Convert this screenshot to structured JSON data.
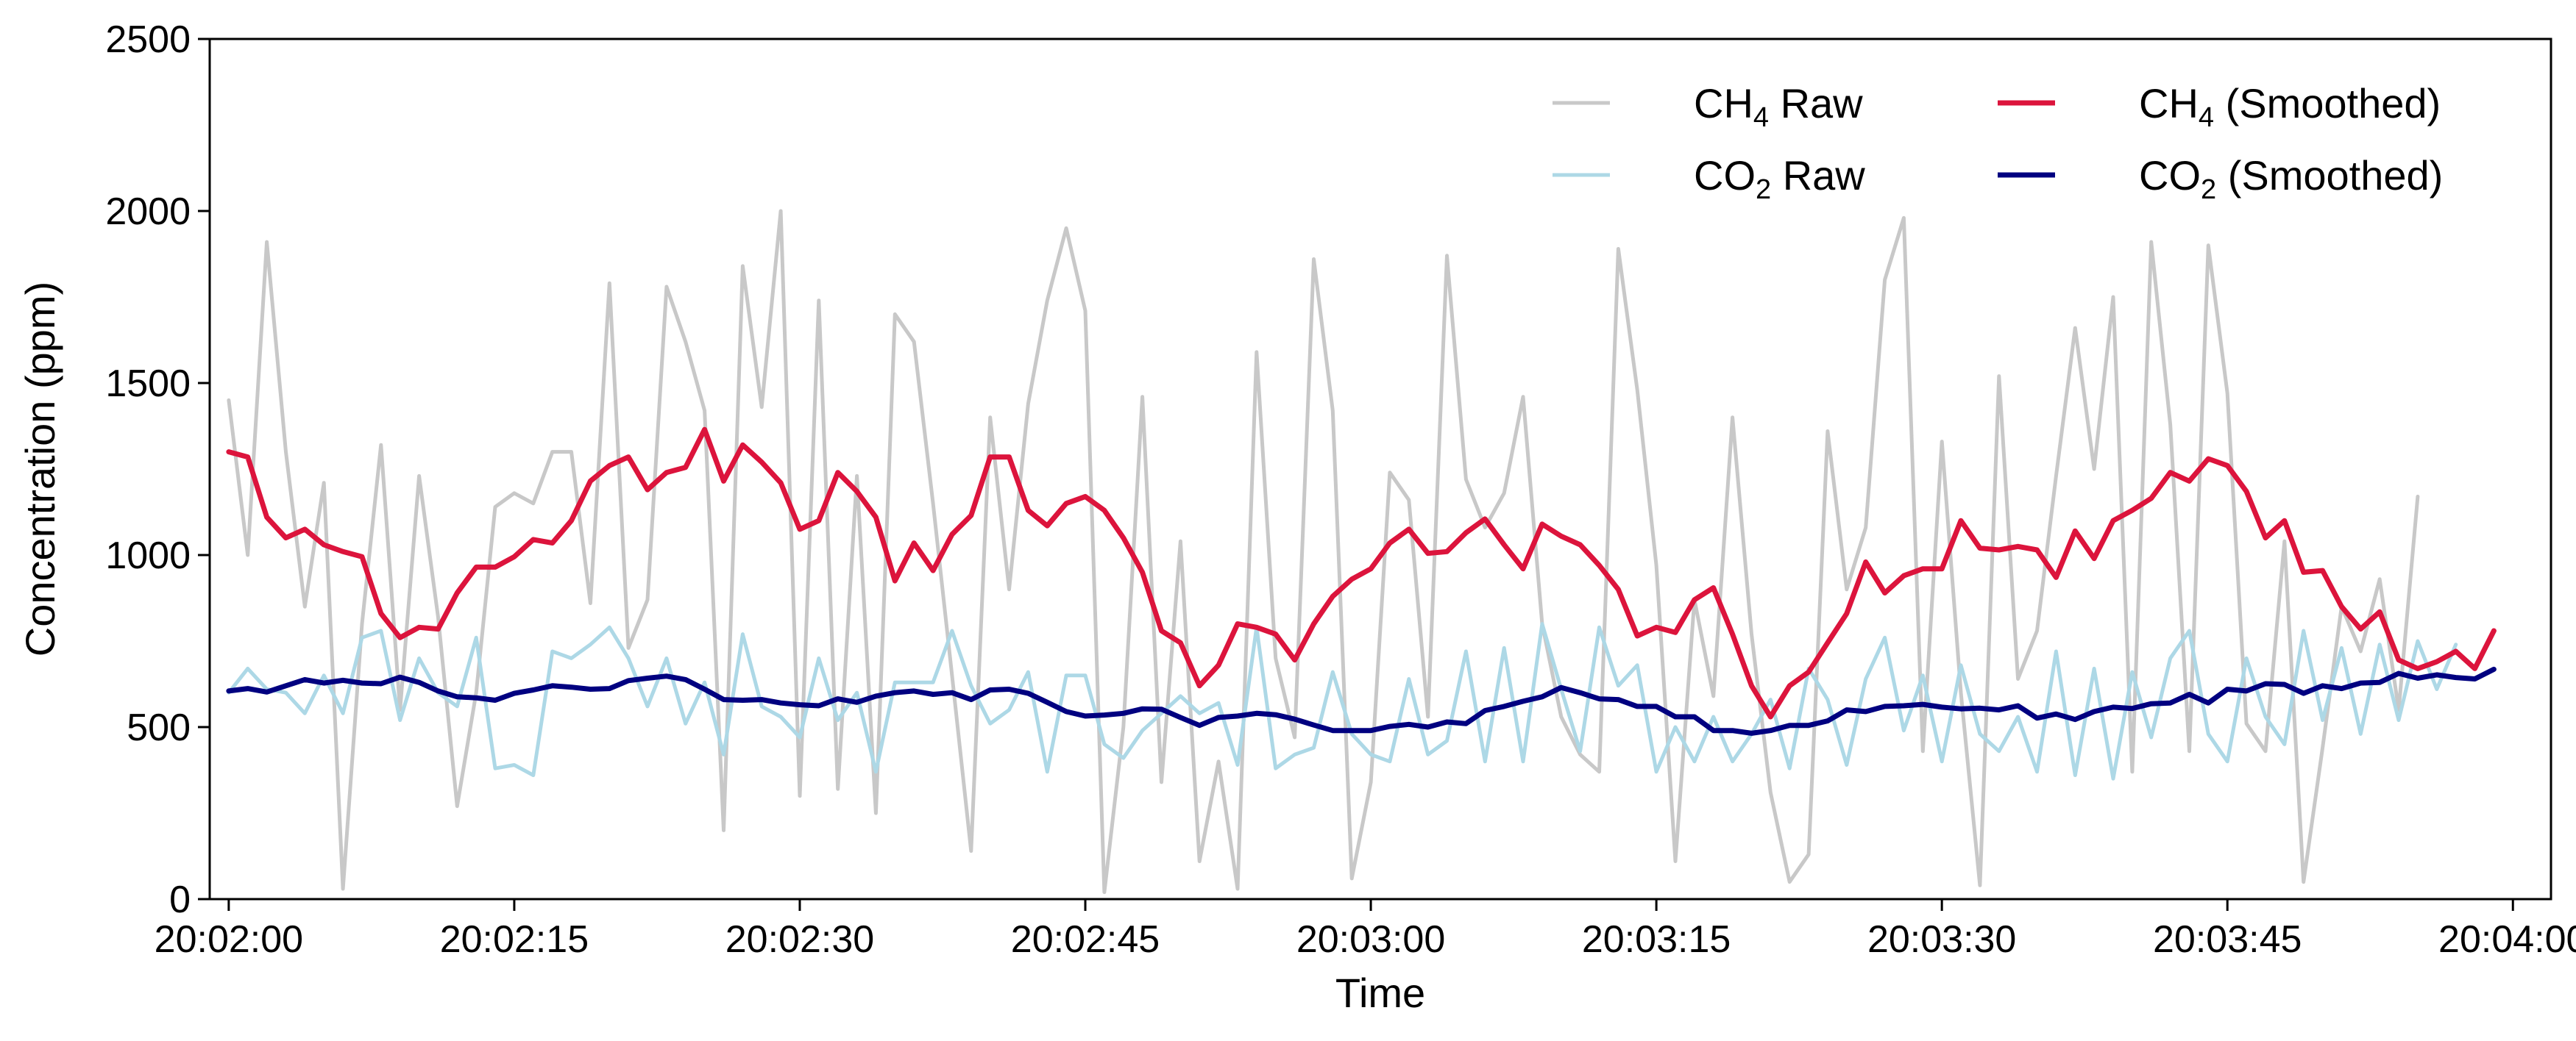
{
  "chart_data": {
    "type": "line",
    "title": "",
    "xlabel": "Time",
    "ylabel": "Concentration (ppm)",
    "ylim": [
      0,
      2500
    ],
    "yticks": [
      0,
      500,
      1000,
      1500,
      2000,
      2500
    ],
    "xlim": [
      "20:01:59",
      "20:04:02"
    ],
    "xticks": [
      "20:02:00",
      "20:02:15",
      "20:02:30",
      "20:02:45",
      "20:03:00",
      "20:03:15",
      "20:03:30",
      "20:03:45",
      "20:04:00"
    ],
    "x_start": "20:02:00",
    "x_step_seconds": 1,
    "grid": false,
    "legend": {
      "placement": "top-right",
      "columns": 2
    },
    "series": [
      {
        "name": "CH₄ Raw",
        "name_base": "CH",
        "name_sub": "4",
        "name_suffix": " Raw",
        "color": "#c8c8c8",
        "role": "raw",
        "values": [
          1450,
          1000,
          1910,
          1300,
          850,
          1210,
          30,
          800,
          1320,
          550,
          1230,
          820,
          270,
          600,
          1140,
          1180,
          1150,
          1300,
          1300,
          860,
          1790,
          730,
          870,
          1780,
          1620,
          1420,
          200,
          1840,
          1430,
          2000,
          300,
          1740,
          320,
          1230,
          250,
          1700,
          1620,
          1150,
          650,
          140,
          1400,
          900,
          1440,
          1740,
          1950,
          1710,
          20,
          500,
          1460,
          340,
          1040,
          110,
          400,
          30,
          1590,
          700,
          470,
          1860,
          1420,
          60,
          340,
          1240,
          1160,
          530,
          1870,
          1220,
          1080,
          1180,
          1460,
          800,
          530,
          420,
          370,
          1890,
          1480,
          970,
          110,
          870,
          590,
          1400,
          770,
          310,
          50,
          130,
          1360,
          900,
          1080,
          1800,
          1980,
          430,
          1330,
          600,
          40,
          1520,
          640,
          780,
          1230,
          1660,
          1250,
          1750,
          370,
          1910,
          1380,
          430,
          1900,
          1470,
          510,
          430,
          1040,
          50,
          440,
          850,
          720,
          930,
          550,
          1170
        ]
      },
      {
        "name": "CO₂ Raw",
        "name_base": "CO",
        "name_sub": "2",
        "name_suffix": " Raw",
        "color": "#add8e6",
        "role": "raw",
        "values": [
          600,
          670,
          610,
          600,
          540,
          650,
          540,
          760,
          780,
          520,
          700,
          600,
          560,
          760,
          380,
          390,
          360,
          720,
          700,
          740,
          790,
          700,
          560,
          700,
          510,
          630,
          420,
          770,
          560,
          530,
          470,
          700,
          520,
          600,
          370,
          630,
          630,
          630,
          780,
          620,
          510,
          550,
          660,
          370,
          650,
          650,
          450,
          410,
          490,
          540,
          590,
          540,
          570,
          390,
          790,
          380,
          420,
          440,
          660,
          480,
          420,
          400,
          640,
          420,
          460,
          720,
          400,
          730,
          400,
          800,
          610,
          430,
          790,
          620,
          680,
          370,
          500,
          400,
          530,
          400,
          480,
          580,
          380,
          670,
          580,
          390,
          640,
          760,
          490,
          650,
          400,
          680,
          480,
          430,
          530,
          370,
          720,
          360,
          670,
          350,
          660,
          470,
          700,
          780,
          480,
          400,
          700,
          530,
          450,
          780,
          520,
          730,
          480,
          740,
          520,
          750,
          610,
          740
        ]
      },
      {
        "name": "CH₄ (Smoothed)",
        "name_base": "CH",
        "name_sub": "4",
        "name_suffix": " (Smoothed)",
        "color": "#dc143c",
        "role": "smoothed",
        "values": [
          1300,
          1285,
          1110,
          1050,
          1075,
          1030,
          1010,
          995,
          830,
          760,
          790,
          785,
          890,
          965,
          965,
          995,
          1045,
          1035,
          1100,
          1215,
          1260,
          1285,
          1190,
          1240,
          1255,
          1365,
          1215,
          1320,
          1270,
          1210,
          1075,
          1100,
          1240,
          1185,
          1110,
          925,
          1035,
          955,
          1060,
          1115,
          1285,
          1285,
          1130,
          1085,
          1150,
          1170,
          1130,
          1050,
          950,
          780,
          745,
          620,
          680,
          800,
          790,
          770,
          695,
          800,
          880,
          930,
          960,
          1035,
          1075,
          1005,
          1010,
          1065,
          1105,
          1030,
          960,
          1090,
          1055,
          1030,
          970,
          900,
          765,
          790,
          775,
          870,
          905,
          770,
          620,
          530,
          620,
          660,
          745,
          830,
          980,
          890,
          940,
          960,
          960,
          1100,
          1020,
          1015,
          1025,
          1015,
          935,
          1070,
          990,
          1100,
          1130,
          1165,
          1240,
          1215,
          1280,
          1260,
          1185,
          1050,
          1100,
          950,
          955,
          850,
          785,
          835,
          695,
          670,
          690,
          720,
          670,
          780
        ]
      },
      {
        "name": "CO₂ (Smoothed)",
        "name_base": "CO",
        "name_sub": "2",
        "name_suffix": " (Smoothed)",
        "color": "#000080",
        "role": "smoothed",
        "values": [
          605,
          612,
          602,
          620,
          638,
          628,
          636,
          628,
          626,
          645,
          630,
          605,
          588,
          585,
          578,
          598,
          608,
          620,
          616,
          610,
          612,
          635,
          642,
          648,
          638,
          610,
          580,
          578,
          580,
          570,
          565,
          562,
          582,
          572,
          590,
          600,
          605,
          595,
          600,
          580,
          608,
          610,
          598,
          572,
          545,
          532,
          535,
          540,
          553,
          552,
          528,
          505,
          528,
          532,
          540,
          536,
          523,
          506,
          490,
          490,
          490,
          502,
          508,
          500,
          515,
          510,
          548,
          560,
          575,
          588,
          615,
          600,
          582,
          580,
          560,
          560,
          530,
          530,
          490,
          490,
          482,
          490,
          505,
          505,
          518,
          550,
          545,
          560,
          562,
          566,
          558,
          553,
          555,
          550,
          562,
          526,
          538,
          522,
          545,
          558,
          554,
          568,
          570,
          595,
          570,
          610,
          605,
          626,
          624,
          598,
          620,
          612,
          628,
          630,
          656,
          642,
          652,
          644,
          640,
          668
        ]
      }
    ]
  }
}
